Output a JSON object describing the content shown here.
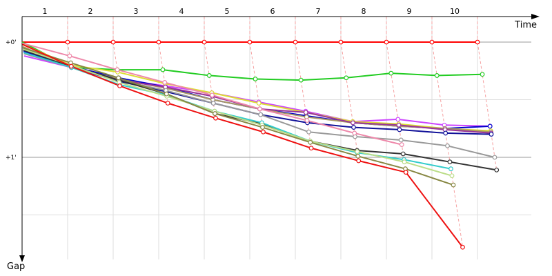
{
  "chart_data": {
    "type": "line",
    "title": "",
    "xlabel": "Time",
    "ylabel": "Gap",
    "laps": [
      "1",
      "2",
      "3",
      "4",
      "5",
      "6",
      "7",
      "8",
      "9",
      "10"
    ],
    "y_ticks": [
      {
        "label": "+0'",
        "value": 0
      },
      {
        "label": "+1'",
        "value": 1
      }
    ],
    "ylim": [
      -0.02,
      1.9
    ],
    "grid": true,
    "series": [
      {
        "color": "#ff0000",
        "points": [
          [
            0,
            0
          ],
          [
            1,
            0
          ],
          [
            2,
            0
          ],
          [
            3,
            0
          ],
          [
            4,
            0
          ],
          [
            5,
            0
          ],
          [
            6,
            0
          ],
          [
            7,
            0
          ],
          [
            8,
            0
          ],
          [
            9,
            0
          ],
          [
            10,
            0
          ]
        ]
      },
      {
        "color": "#22cc22",
        "points": [
          [
            0,
            0
          ],
          [
            1,
            0.22
          ],
          [
            2,
            0.24
          ],
          [
            3,
            0.24
          ],
          [
            4,
            0.29
          ],
          [
            5,
            0.32
          ],
          [
            6,
            0.33
          ],
          [
            7,
            0.31
          ],
          [
            8,
            0.27
          ],
          [
            9,
            0.29
          ],
          [
            10,
            0.28
          ]
        ]
      },
      {
        "color": "#cc44ff",
        "points": [
          [
            0,
            0.12
          ],
          [
            1,
            0.22
          ],
          [
            2,
            0.32
          ],
          [
            3,
            0.38
          ],
          [
            4,
            0.44
          ],
          [
            5,
            0.52
          ],
          [
            6,
            0.6
          ],
          [
            7,
            0.69
          ],
          [
            8,
            0.67
          ],
          [
            9,
            0.72
          ],
          [
            10,
            0.73
          ]
        ]
      },
      {
        "color": "#0000cc",
        "points": [
          [
            0,
            0.08
          ],
          [
            1,
            0.21
          ],
          [
            2,
            0.31
          ],
          [
            3,
            0.39
          ],
          [
            4,
            0.5
          ],
          [
            5,
            0.58
          ],
          [
            6,
            0.64
          ],
          [
            7,
            0.7
          ],
          [
            8,
            0.73
          ],
          [
            9,
            0.75
          ],
          [
            10,
            0.73
          ]
        ]
      },
      {
        "color": "#dddd33",
        "points": [
          [
            0,
            0.02
          ],
          [
            1,
            0.2
          ],
          [
            2,
            0.26
          ],
          [
            3,
            0.36
          ],
          [
            4,
            0.44
          ],
          [
            5,
            0.53
          ],
          [
            6,
            0.61
          ],
          [
            7,
            0.69
          ],
          [
            8,
            0.71
          ],
          [
            9,
            0.75
          ],
          [
            10,
            0.77
          ]
        ]
      },
      {
        "color": "#aa9966",
        "points": [
          [
            0,
            0.04
          ],
          [
            1,
            0.22
          ],
          [
            2,
            0.32
          ],
          [
            3,
            0.4
          ],
          [
            4,
            0.5
          ],
          [
            5,
            0.58
          ],
          [
            6,
            0.65
          ],
          [
            7,
            0.7
          ],
          [
            8,
            0.73
          ],
          [
            9,
            0.75
          ],
          [
            10,
            0.78
          ]
        ]
      },
      {
        "color": "#993399",
        "points": [
          [
            0,
            0.05
          ],
          [
            1,
            0.21
          ],
          [
            2,
            0.33
          ],
          [
            3,
            0.39
          ],
          [
            4,
            0.47
          ],
          [
            5,
            0.58
          ],
          [
            6,
            0.61
          ],
          [
            7,
            0.7
          ],
          [
            8,
            0.72
          ],
          [
            9,
            0.76
          ],
          [
            10,
            0.79
          ]
        ]
      },
      {
        "color": "#111199",
        "points": [
          [
            0,
            0.06
          ],
          [
            1,
            0.22
          ],
          [
            2,
            0.34
          ],
          [
            3,
            0.43
          ],
          [
            4,
            0.53
          ],
          [
            5,
            0.63
          ],
          [
            6,
            0.7
          ],
          [
            7,
            0.74
          ],
          [
            8,
            0.76
          ],
          [
            9,
            0.79
          ],
          [
            10,
            0.8
          ]
        ]
      },
      {
        "color": "#999999",
        "points": [
          [
            0,
            0.1
          ],
          [
            1,
            0.22
          ],
          [
            2,
            0.33
          ],
          [
            3,
            0.42
          ],
          [
            4,
            0.53
          ],
          [
            5,
            0.63
          ],
          [
            6,
            0.78
          ],
          [
            7,
            0.82
          ],
          [
            8,
            0.85
          ],
          [
            9,
            0.9
          ],
          [
            10,
            1.0
          ]
        ]
      },
      {
        "color": "#333333",
        "points": [
          [
            0,
            0.07
          ],
          [
            1,
            0.21
          ],
          [
            2,
            0.33
          ],
          [
            3,
            0.45
          ],
          [
            4,
            0.62
          ],
          [
            5,
            0.71
          ],
          [
            6,
            0.86
          ],
          [
            7,
            0.94
          ],
          [
            8,
            0.97
          ],
          [
            9,
            1.04
          ],
          [
            10,
            1.11
          ]
        ]
      },
      {
        "color": "#33cccc",
        "points": [
          [
            0,
            0.09
          ],
          [
            1,
            0.22
          ],
          [
            2,
            0.37
          ],
          [
            3,
            0.46
          ],
          [
            4,
            0.6
          ],
          [
            5,
            0.7
          ],
          [
            6,
            0.86
          ],
          [
            7,
            0.96
          ],
          [
            8,
            1.02
          ],
          [
            9,
            1.1
          ]
        ]
      },
      {
        "color": "#bbdd88",
        "points": [
          [
            0,
            0.06
          ],
          [
            1,
            0.2
          ],
          [
            2,
            0.35
          ],
          [
            3,
            0.47
          ],
          [
            4,
            0.6
          ],
          [
            5,
            0.72
          ],
          [
            6,
            0.86
          ],
          [
            7,
            0.95
          ],
          [
            8,
            1.04
          ],
          [
            9,
            1.16
          ]
        ]
      },
      {
        "color": "#888844",
        "points": [
          [
            0,
            0.05
          ],
          [
            1,
            0.18
          ],
          [
            2,
            0.31
          ],
          [
            3,
            0.45
          ],
          [
            4,
            0.62
          ],
          [
            5,
            0.74
          ],
          [
            6,
            0.87
          ],
          [
            7,
            0.99
          ],
          [
            8,
            1.1
          ],
          [
            9,
            1.24
          ]
        ]
      },
      {
        "color": "#ee88aa",
        "points": [
          [
            0,
            0.01
          ],
          [
            1,
            0.12
          ],
          [
            2,
            0.24
          ],
          [
            3,
            0.35
          ],
          [
            4,
            0.46
          ],
          [
            5,
            0.58
          ],
          [
            6,
            0.68
          ],
          [
            7,
            0.79
          ],
          [
            8,
            0.89
          ]
        ]
      },
      {
        "color": "#ee1111",
        "points": [
          [
            0,
            0.02
          ],
          [
            1,
            0.21
          ],
          [
            2,
            0.38
          ],
          [
            3,
            0.53
          ],
          [
            4,
            0.66
          ],
          [
            5,
            0.78
          ],
          [
            6,
            0.92
          ],
          [
            7,
            1.03
          ],
          [
            8,
            1.13
          ],
          [
            9,
            1.78
          ]
        ]
      }
    ]
  }
}
